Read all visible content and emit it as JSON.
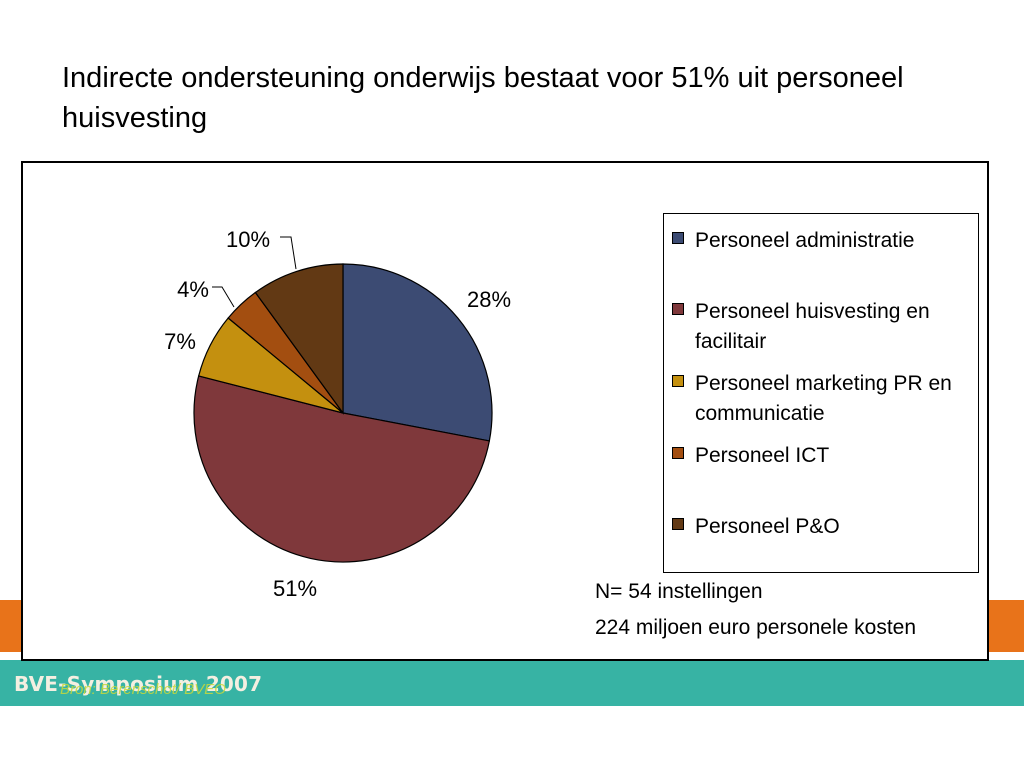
{
  "slide": {
    "title": "Indirecte ondersteuning onderwijs bestaat voor 51% uit personeel huisvesting"
  },
  "footer": {
    "logo_text": "BVE-Symposium 2007",
    "overlay_text": "Bron: Berenschot/ BVEO"
  },
  "chart_data": {
    "type": "pie",
    "title": "",
    "start_angle_deg": 0,
    "direction": "clockwise",
    "slices": [
      {
        "label": "Personeel administratie",
        "value": 28,
        "display": "28%",
        "color": "#3c4b73"
      },
      {
        "label": "Personeel huisvesting en facilitair",
        "value": 51,
        "display": "51%",
        "color": "#7f383b"
      },
      {
        "label": "Personeel marketing PR en communicatie",
        "value": 7,
        "display": "7%",
        "color": "#c4900f"
      },
      {
        "label": "Personeel ICT",
        "value": 4,
        "display": "4%",
        "color": "#a34e10"
      },
      {
        "label": "Personeel P&O",
        "value": 10,
        "display": "10%",
        "color": "#623914"
      }
    ],
    "legend_placement": "right",
    "notes": [
      "N= 54 instellingen",
      "224 miljoen euro personele kosten"
    ]
  }
}
